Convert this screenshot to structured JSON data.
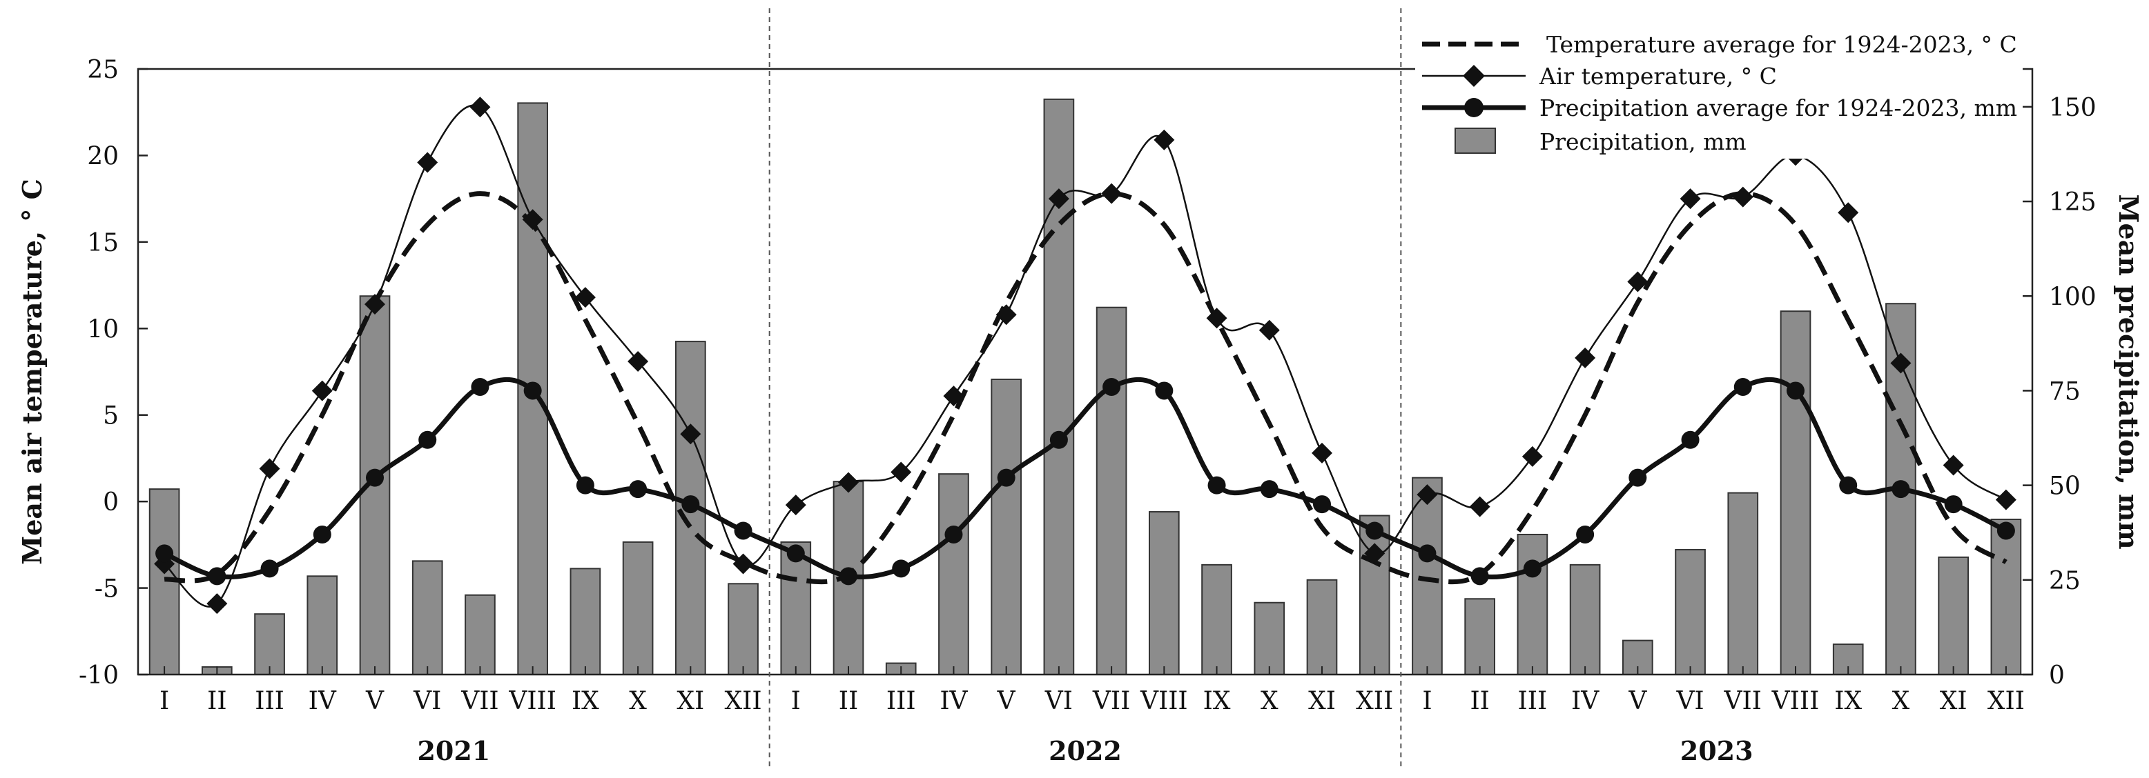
{
  "chart_data": {
    "type": "bar+line",
    "categories": [
      "I",
      "II",
      "III",
      "IV",
      "V",
      "VI",
      "VII",
      "VIII",
      "IX",
      "X",
      "XI",
      "XII",
      "I",
      "II",
      "III",
      "IV",
      "V",
      "VI",
      "VII",
      "VIII",
      "IX",
      "X",
      "XI",
      "XII",
      "I",
      "II",
      "III",
      "IV",
      "V",
      "VI",
      "VII",
      "VIII",
      "IX",
      "X",
      "XI",
      "XII"
    ],
    "year_groups": [
      {
        "label": "2021",
        "start": 0,
        "count": 12
      },
      {
        "label": "2022",
        "start": 12,
        "count": 12
      },
      {
        "label": "2023",
        "start": 24,
        "count": 12
      }
    ],
    "left_axis": {
      "label": "Mean air temperature, ° C",
      "ylim": [
        -10,
        25
      ],
      "ticks": [
        -10,
        -5,
        0,
        5,
        10,
        15,
        20,
        25
      ]
    },
    "right_axis": {
      "label": "Mean precipitation, mm",
      "ylim": [
        0,
        160
      ],
      "ticks": [
        0,
        25,
        50,
        75,
        100,
        125,
        150
      ]
    },
    "legend_position": "top-right",
    "series": [
      {
        "name": "Temperature average for 1924-2023, ° C",
        "type": "line",
        "style": "dashed",
        "axis": "left",
        "values": [
          -4.5,
          -4.2,
          -0.5,
          5.0,
          11.5,
          16.0,
          17.8,
          16.0,
          10.5,
          4.5,
          -1.5,
          -3.5,
          -4.5,
          -4.2,
          -0.5,
          5.0,
          11.5,
          16.0,
          17.8,
          16.0,
          10.5,
          4.5,
          -1.5,
          -3.5,
          -4.5,
          -4.2,
          -0.5,
          5.0,
          11.5,
          16.0,
          17.8,
          16.0,
          10.5,
          4.5,
          -1.5,
          -3.5
        ]
      },
      {
        "name": "Air temperature, ° C",
        "type": "line",
        "marker": "diamond",
        "axis": "left",
        "values": [
          -3.6,
          -5.9,
          1.9,
          6.4,
          11.4,
          19.6,
          22.8,
          16.3,
          11.8,
          8.1,
          3.9,
          -3.6,
          -0.2,
          1.1,
          1.7,
          6.1,
          10.8,
          17.5,
          17.8,
          20.9,
          10.6,
          9.9,
          2.8,
          -3.0,
          0.4,
          -0.3,
          2.6,
          8.3,
          12.7,
          17.5,
          17.6,
          20.0,
          16.7,
          8.0,
          2.1,
          0.1
        ]
      },
      {
        "name": "Precipitation average for 1924-2023, mm",
        "type": "line",
        "marker": "circle",
        "axis": "right",
        "values": [
          32,
          26,
          28,
          37,
          52,
          62,
          76,
          75,
          50,
          49,
          45,
          38,
          32,
          26,
          28,
          37,
          52,
          62,
          76,
          75,
          50,
          49,
          45,
          38,
          32,
          26,
          28,
          37,
          52,
          62,
          76,
          75,
          50,
          49,
          45,
          38
        ]
      },
      {
        "name": "Precipitation, mm",
        "type": "bar",
        "axis": "right",
        "values": [
          49,
          2,
          16,
          26,
          100,
          30,
          21,
          151,
          28,
          35,
          88,
          24,
          35,
          51,
          3,
          53,
          78,
          152,
          97,
          43,
          29,
          19,
          25,
          42,
          52,
          20,
          37,
          29,
          9,
          33,
          48,
          96,
          8,
          98,
          31,
          41
        ]
      }
    ]
  }
}
